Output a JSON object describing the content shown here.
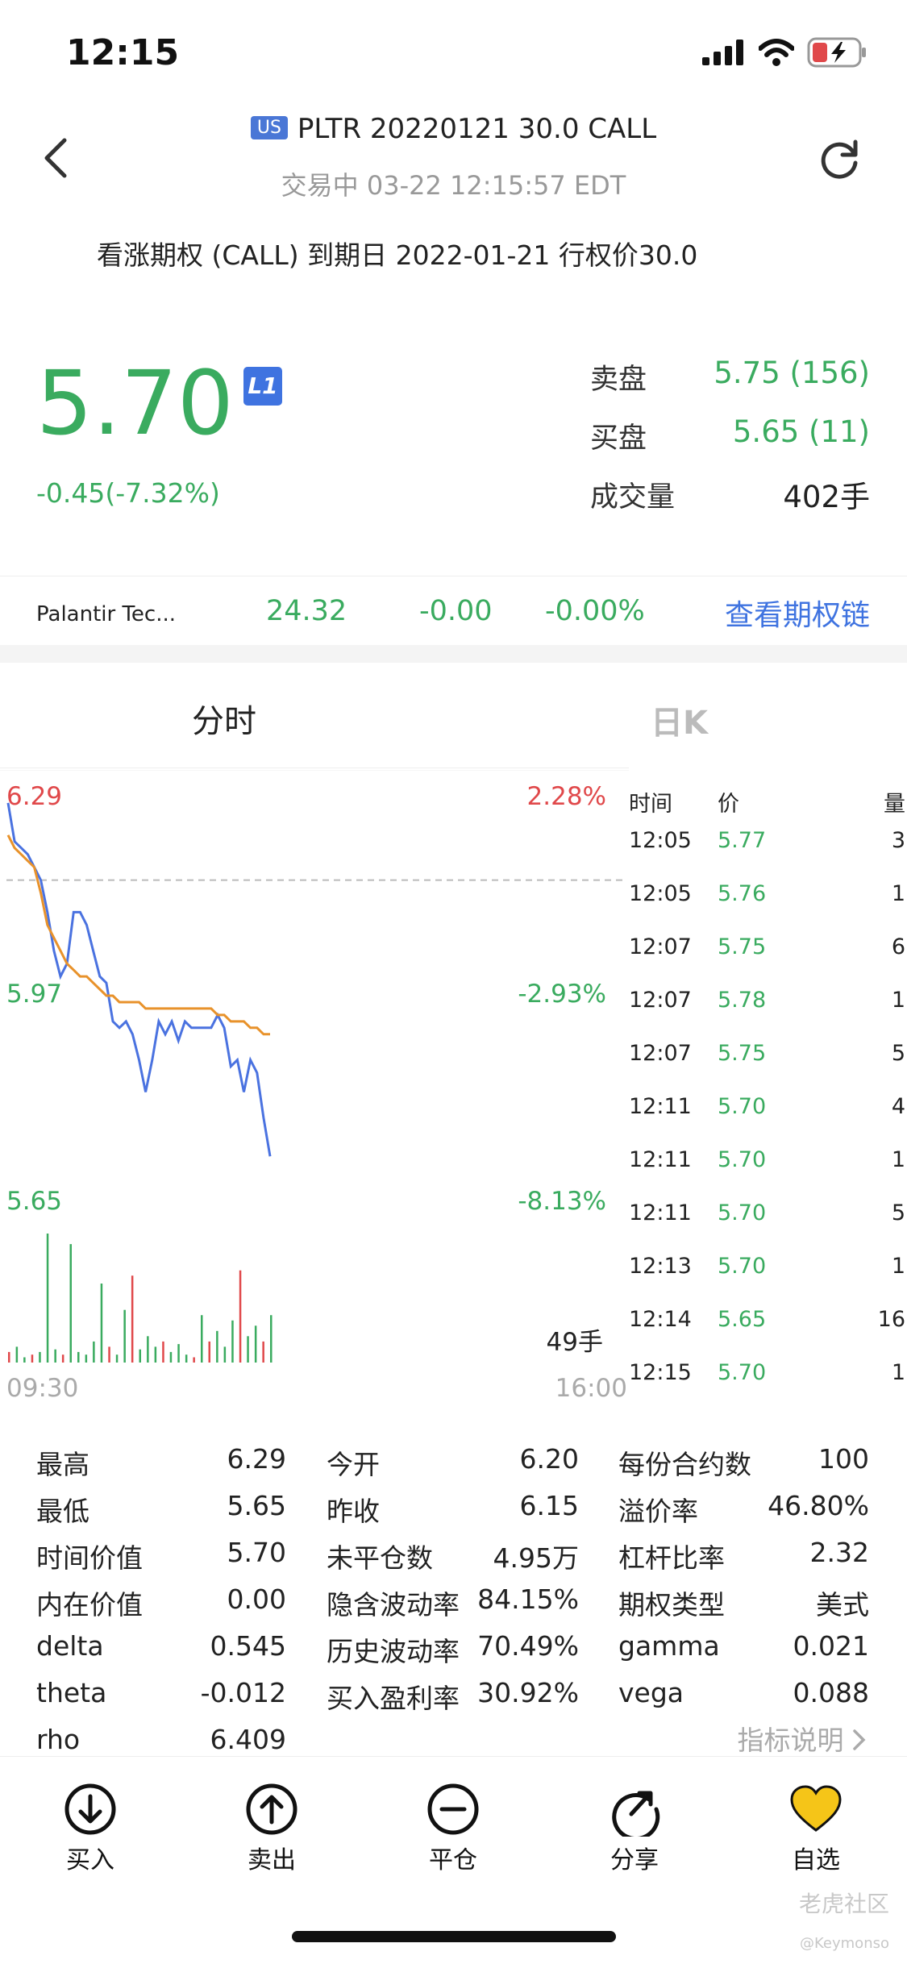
{
  "status_bar": {
    "time": "12:15"
  },
  "header": {
    "badge": "US",
    "title": "PLTR 20220121 30.0 CALL",
    "subtitle": "交易中  03-22 12:15:57 EDT",
    "option_desc": "看涨期权 (CALL)  到期日  2022-01-21  行权价30.0"
  },
  "quote": {
    "price": "5.70",
    "level_badge": "L1",
    "change": "-0.45(-7.32%)",
    "ask_label": "卖盘",
    "ask_value": "5.75 (156)",
    "bid_label": "买盘",
    "bid_value": "5.65 (11)",
    "volume_label": "成交量",
    "volume_value": "402手"
  },
  "underlying": {
    "name": "Palantir Tec...",
    "price": "24.32",
    "change": "-0.00",
    "change_pct": "-0.00%",
    "link": "查看期权链"
  },
  "tabs": {
    "intraday": "分时",
    "daily": "日K"
  },
  "chart_data": {
    "type": "line",
    "title": "",
    "x_start": "09:30",
    "x_end": "16:00",
    "price_labels": [
      "6.29",
      "5.97",
      "5.65"
    ],
    "pct_labels": [
      "2.28%",
      "-2.93%",
      "-8.13%"
    ],
    "prev_close": 6.15,
    "ylim": [
      5.65,
      6.29
    ],
    "volume_label": "49手",
    "series": [
      {
        "color": "#4a72e0",
        "values": [
          6.27,
          6.21,
          6.2,
          6.19,
          6.17,
          6.15,
          6.1,
          6.04,
          6.0,
          6.02,
          6.1,
          6.1,
          6.08,
          6.04,
          6.0,
          5.99,
          5.93,
          5.92,
          5.93,
          5.91,
          5.87,
          5.82,
          5.87,
          5.93,
          5.91,
          5.93,
          5.9,
          5.93,
          5.92,
          5.92,
          5.92,
          5.92,
          5.94,
          5.92,
          5.86,
          5.87,
          5.82,
          5.87,
          5.85,
          5.78,
          5.72
        ]
      },
      {
        "color": "#e8922b",
        "values": [
          6.22,
          6.2,
          6.19,
          6.18,
          6.17,
          6.13,
          6.08,
          6.06,
          6.04,
          6.02,
          6.01,
          6.0,
          6.0,
          5.99,
          5.98,
          5.97,
          5.97,
          5.96,
          5.96,
          5.96,
          5.96,
          5.95,
          5.95,
          5.95,
          5.95,
          5.95,
          5.95,
          5.95,
          5.95,
          5.95,
          5.95,
          5.95,
          5.94,
          5.94,
          5.93,
          5.93,
          5.93,
          5.92,
          5.92,
          5.91,
          5.91
        ]
      }
    ],
    "volumes": [
      {
        "v": 4,
        "c": "#e0484a"
      },
      {
        "v": 6,
        "c": "#3aab5f"
      },
      {
        "v": 2,
        "c": "#3aab5f"
      },
      {
        "v": 3,
        "c": "#e0484a"
      },
      {
        "v": 4,
        "c": "#3aab5f"
      },
      {
        "v": 49,
        "c": "#3aab5f"
      },
      {
        "v": 5,
        "c": "#3aab5f"
      },
      {
        "v": 3,
        "c": "#e0484a"
      },
      {
        "v": 45,
        "c": "#3aab5f"
      },
      {
        "v": 4,
        "c": "#3aab5f"
      },
      {
        "v": 3,
        "c": "#3aab5f"
      },
      {
        "v": 8,
        "c": "#3aab5f"
      },
      {
        "v": 30,
        "c": "#3aab5f"
      },
      {
        "v": 6,
        "c": "#e0484a"
      },
      {
        "v": 3,
        "c": "#3aab5f"
      },
      {
        "v": 20,
        "c": "#3aab5f"
      },
      {
        "v": 33,
        "c": "#e0484a"
      },
      {
        "v": 5,
        "c": "#3aab5f"
      },
      {
        "v": 10,
        "c": "#3aab5f"
      },
      {
        "v": 6,
        "c": "#3aab5f"
      },
      {
        "v": 8,
        "c": "#e0484a"
      },
      {
        "v": 4,
        "c": "#3aab5f"
      },
      {
        "v": 7,
        "c": "#3aab5f"
      },
      {
        "v": 3,
        "c": "#3aab5f"
      },
      {
        "v": 2,
        "c": "#e0484a"
      },
      {
        "v": 18,
        "c": "#3aab5f"
      },
      {
        "v": 8,
        "c": "#e0484a"
      },
      {
        "v": 12,
        "c": "#3aab5f"
      },
      {
        "v": 6,
        "c": "#3aab5f"
      },
      {
        "v": 16,
        "c": "#3aab5f"
      },
      {
        "v": 35,
        "c": "#e0484a"
      },
      {
        "v": 10,
        "c": "#3aab5f"
      },
      {
        "v": 14,
        "c": "#3aab5f"
      },
      {
        "v": 8,
        "c": "#e0484a"
      },
      {
        "v": 18,
        "c": "#3aab5f"
      }
    ]
  },
  "ticks": {
    "headers": [
      "时间",
      "价",
      "量"
    ],
    "rows": [
      {
        "time": "12:05",
        "price": "5.77",
        "vol": "3"
      },
      {
        "time": "12:05",
        "price": "5.76",
        "vol": "1"
      },
      {
        "time": "12:07",
        "price": "5.75",
        "vol": "6"
      },
      {
        "time": "12:07",
        "price": "5.78",
        "vol": "1"
      },
      {
        "time": "12:07",
        "price": "5.75",
        "vol": "5"
      },
      {
        "time": "12:11",
        "price": "5.70",
        "vol": "4"
      },
      {
        "time": "12:11",
        "price": "5.70",
        "vol": "1"
      },
      {
        "time": "12:11",
        "price": "5.70",
        "vol": "5"
      },
      {
        "time": "12:13",
        "price": "5.70",
        "vol": "1"
      },
      {
        "time": "12:14",
        "price": "5.65",
        "vol": "16"
      },
      {
        "time": "12:15",
        "price": "5.70",
        "vol": "1"
      }
    ]
  },
  "stats": {
    "col1": [
      {
        "label": "最高",
        "value": "6.29"
      },
      {
        "label": "最低",
        "value": "5.65"
      },
      {
        "label": "时间价值",
        "value": "5.70"
      },
      {
        "label": "内在价值",
        "value": "0.00"
      },
      {
        "label": "delta",
        "value": "0.545"
      },
      {
        "label": "theta",
        "value": "-0.012"
      },
      {
        "label": "rho",
        "value": "6.409"
      }
    ],
    "col2": [
      {
        "label": "今开",
        "value": "6.20"
      },
      {
        "label": "昨收",
        "value": "6.15"
      },
      {
        "label": "未平仓数",
        "value": "4.95万"
      },
      {
        "label": "隐含波动率",
        "value": "84.15%"
      },
      {
        "label": "历史波动率",
        "value": "70.49%"
      },
      {
        "label": "买入盈利率",
        "value": "30.92%"
      }
    ],
    "col3": [
      {
        "label": "每份合约数",
        "value": "100"
      },
      {
        "label": "溢价率",
        "value": "46.80%"
      },
      {
        "label": "杠杆比率",
        "value": "2.32"
      },
      {
        "label": "期权类型",
        "value": "美式"
      },
      {
        "label": "gamma",
        "value": "0.021"
      },
      {
        "label": "vega",
        "value": "0.088"
      }
    ],
    "link": "指标说明"
  },
  "bottom_nav": {
    "buy": "买入",
    "sell": "卖出",
    "close": "平仓",
    "share": "分享",
    "watch": "自选"
  },
  "watermark": {
    "text": "老虎社区",
    "user": "@Keymonso"
  },
  "colors": {
    "up": "#e0484a",
    "down": "#3aab5f",
    "accent": "#3f73e0",
    "watch_icon": "#f5c518"
  }
}
